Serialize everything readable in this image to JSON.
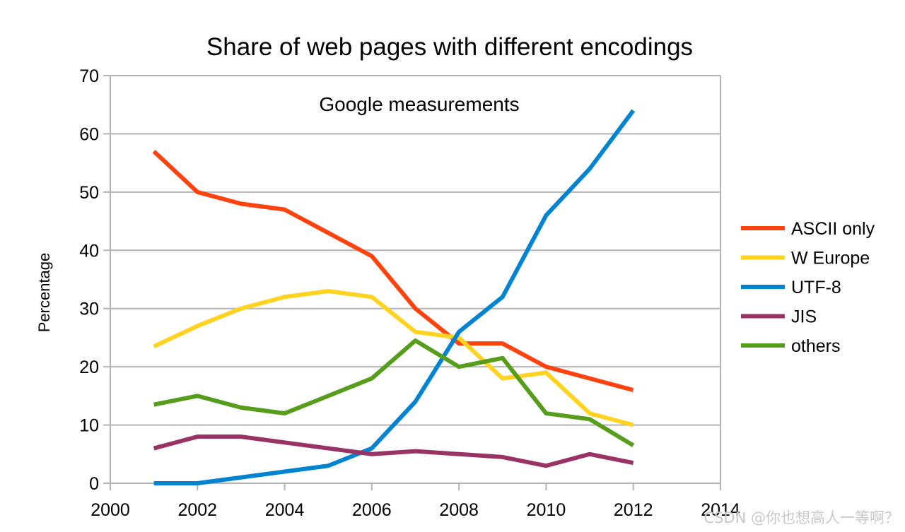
{
  "chart_data": {
    "type": "line",
    "title": "Share of web pages with different encodings",
    "subtitle": "Google measurements",
    "xlabel": "",
    "ylabel": "Percentage",
    "xlim": [
      2000,
      2014
    ],
    "ylim": [
      0,
      70
    ],
    "x_ticks": [
      2000,
      2002,
      2004,
      2006,
      2008,
      2010,
      2012,
      2014
    ],
    "y_ticks": [
      0,
      10,
      20,
      30,
      40,
      50,
      60,
      70
    ],
    "grid": "horizontal",
    "legend_position": "right",
    "x": [
      2001,
      2002,
      2003,
      2004,
      2005,
      2006,
      2007,
      2008,
      2009,
      2010,
      2011,
      2012
    ],
    "series": [
      {
        "name": "ASCII only",
        "color": "#ff420e",
        "values": [
          57,
          50,
          48,
          47,
          43,
          39,
          30,
          24,
          24,
          20,
          18,
          16
        ]
      },
      {
        "name": "W Europe",
        "color": "#ffd320",
        "values": [
          23.5,
          27,
          30,
          32,
          33,
          32,
          26,
          25,
          18,
          19,
          12,
          10
        ]
      },
      {
        "name": "UTF-8",
        "color": "#0084d1",
        "values": [
          0,
          0,
          1,
          2,
          3,
          6,
          14,
          26,
          32,
          46,
          54,
          64
        ]
      },
      {
        "name": "JIS",
        "color": "#993366",
        "values": [
          6,
          8,
          8,
          7,
          6,
          5,
          5.5,
          5,
          4.5,
          3,
          5,
          3.5
        ]
      },
      {
        "name": "others",
        "color": "#579d1c",
        "values": [
          13.5,
          15,
          13,
          12,
          15,
          18,
          24.5,
          20,
          21.5,
          12,
          11,
          6.5
        ]
      }
    ]
  },
  "watermark": "CSDN @你也想高人一等啊？"
}
